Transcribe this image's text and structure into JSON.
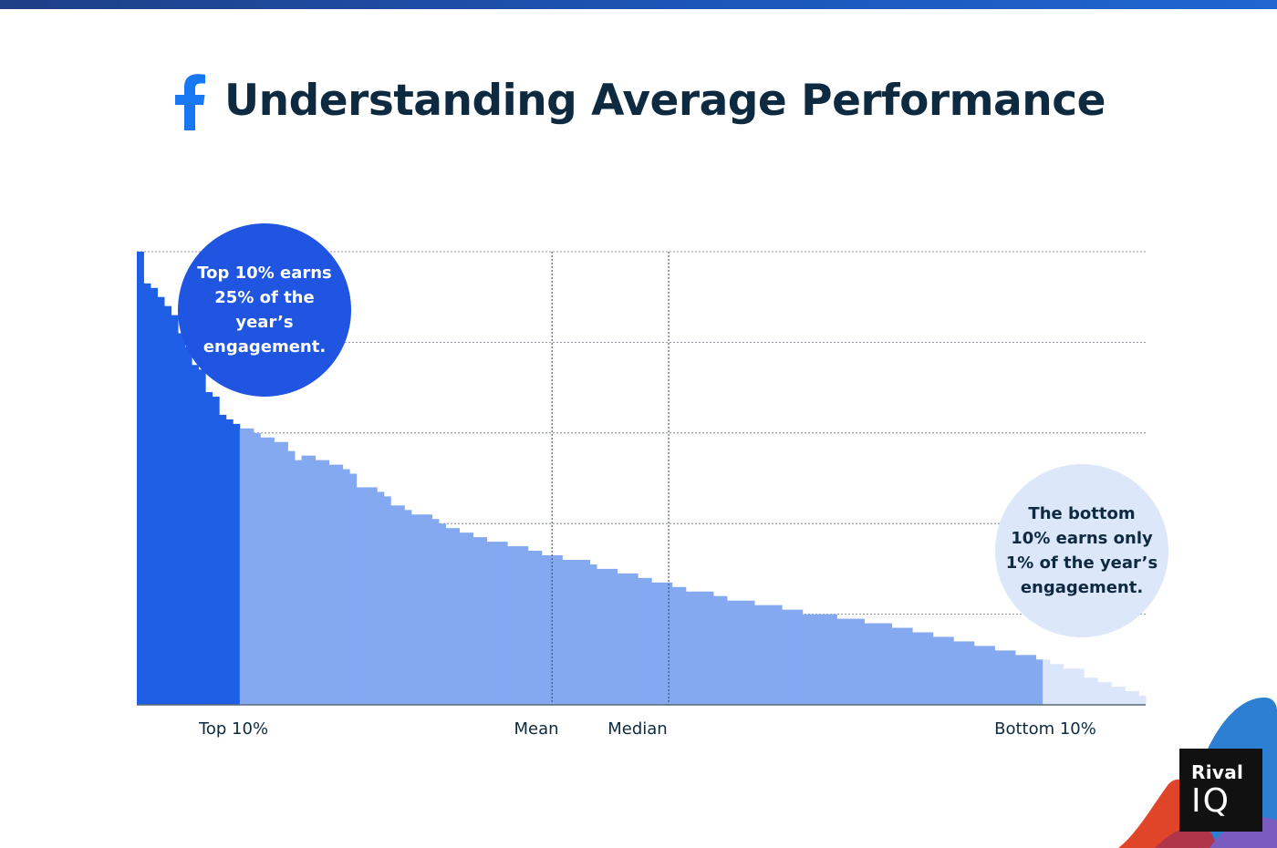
{
  "title": "Understanding Average Performance",
  "colors": {
    "top_bar": "#1f56b8",
    "title_text": "#0d2a40",
    "facebook_blue": "#1877f2",
    "top_decile": "#1f5fe6",
    "middle": "#84a9f1",
    "bottom_decile": "#dbe6fb",
    "bubble_top": "#1f55e0",
    "bubble_bottom": "#dce7fa"
  },
  "chart_data": {
    "type": "bar",
    "title": "Understanding Average Performance",
    "description_series": "Posts ranked by engagement, highest to lowest (relative units)",
    "ylim": [
      0,
      100
    ],
    "grid": true,
    "n": 147,
    "top_count": 15,
    "bottom_count": 15,
    "values": [
      100,
      93,
      92,
      90,
      88,
      86,
      82,
      79,
      75,
      74,
      69,
      68,
      64,
      63,
      62,
      61,
      61,
      60,
      59,
      59,
      58,
      58,
      56,
      54,
      55,
      55,
      54,
      54,
      53,
      53,
      52,
      51,
      48,
      48,
      48,
      47,
      46,
      44,
      44,
      43,
      42,
      42,
      42,
      41,
      40,
      39,
      39,
      38,
      38,
      37,
      37,
      36,
      36,
      36,
      35,
      35,
      35,
      34,
      34,
      33,
      33,
      33,
      32,
      32,
      32,
      32,
      31,
      30,
      30,
      30,
      29,
      29,
      29,
      28,
      28,
      27,
      27,
      27,
      26,
      26,
      25,
      25,
      25,
      25,
      24,
      24,
      23,
      23,
      23,
      23,
      22,
      22,
      22,
      22,
      21,
      21,
      21,
      20,
      20,
      20,
      20,
      20,
      19,
      19,
      19,
      19,
      18,
      18,
      18,
      18,
      17,
      17,
      17,
      16,
      16,
      16,
      15,
      15,
      15,
      14,
      14,
      14,
      13,
      13,
      13,
      12,
      12,
      12,
      11,
      11,
      11,
      10,
      10,
      9,
      9,
      8,
      8,
      8,
      6,
      6,
      5,
      5,
      4,
      4,
      3,
      3,
      2
    ],
    "mean_index": 60,
    "median_index": 77,
    "x_labels": {
      "top": "Top 10%",
      "mean": "Mean",
      "median": "Median",
      "bottom": "Bottom 10%"
    },
    "annotations": {
      "top": [
        "Top 10% earns",
        "25% of the year’s",
        "engagement."
      ],
      "bottom": [
        "The bottom",
        "10% earns only",
        "1% of the year’s",
        "engagement."
      ]
    }
  },
  "brand": {
    "line1": "Rival",
    "line2": "IQ"
  }
}
